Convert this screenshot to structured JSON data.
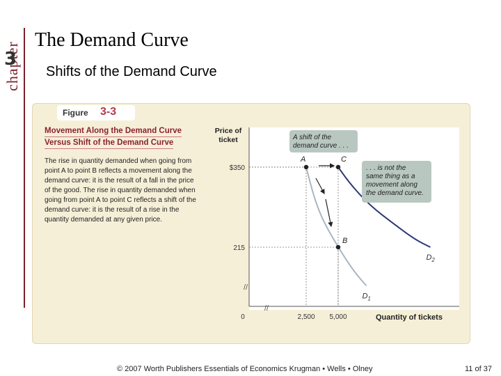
{
  "sidebar": {
    "chapter_word": "chapter",
    "chapter_number": "3"
  },
  "header": {
    "title": "The Demand Curve",
    "subtitle": "Shifts of the Demand Curve"
  },
  "figure": {
    "label": "Figure",
    "number": "3-3",
    "caption_title_line1": "Movement Along the Demand Curve",
    "caption_title_line2": "Versus Shift of the Demand Curve",
    "caption_body": "The rise in quantity demanded when going from point A to point B reflects a movement along the demand curve: it is the result of a fall in the price of the good. The rise in quantity demanded when going from point A to point C reflects a shift of the demand curve: it is the result of a rise in the quantity demanded at any given price."
  },
  "chart_data": {
    "type": "line",
    "ylabel": "Price of ticket",
    "xlabel": "Quantity of tickets",
    "origin_label": "0",
    "x_ticks": [
      {
        "value": 2500,
        "label": "2,500"
      },
      {
        "value": 5000,
        "label": "5,000"
      }
    ],
    "y_ticks": [
      {
        "value": 350,
        "label": "$350"
      },
      {
        "value": 215,
        "label": "215"
      }
    ],
    "axis_breaks": true,
    "series": [
      {
        "name": "D1",
        "points": [
          [
            2500,
            350
          ],
          [
            3100,
            300
          ],
          [
            3800,
            260
          ],
          [
            5000,
            215
          ],
          [
            6200,
            175
          ],
          [
            7200,
            150
          ]
        ]
      },
      {
        "name": "D2",
        "points": [
          [
            5000,
            350
          ],
          [
            6000,
            320
          ],
          [
            7500,
            285
          ],
          [
            9300,
            255
          ],
          [
            11000,
            228
          ],
          [
            12200,
            215
          ]
        ]
      }
    ],
    "points": [
      {
        "label": "A",
        "x": 2500,
        "y": 350
      },
      {
        "label": "B",
        "x": 5000,
        "y": 215
      },
      {
        "label": "C",
        "x": 5000,
        "y": 350
      }
    ],
    "annotations": [
      {
        "text": "A shift of the demand curve . . ."
      },
      {
        "text": ". . . is not the same thing as a movement along the demand curve."
      }
    ],
    "colors": {
      "D1": "#a8b6c4",
      "D2": "#2d3876",
      "callout_bg": "#b9c7c1",
      "accent": "#8b2230"
    }
  },
  "footer": {
    "copyright": "© 2007 Worth Publishers   Essentials of Economics   Krugman • Wells • Olney",
    "page": "11 of 37"
  }
}
